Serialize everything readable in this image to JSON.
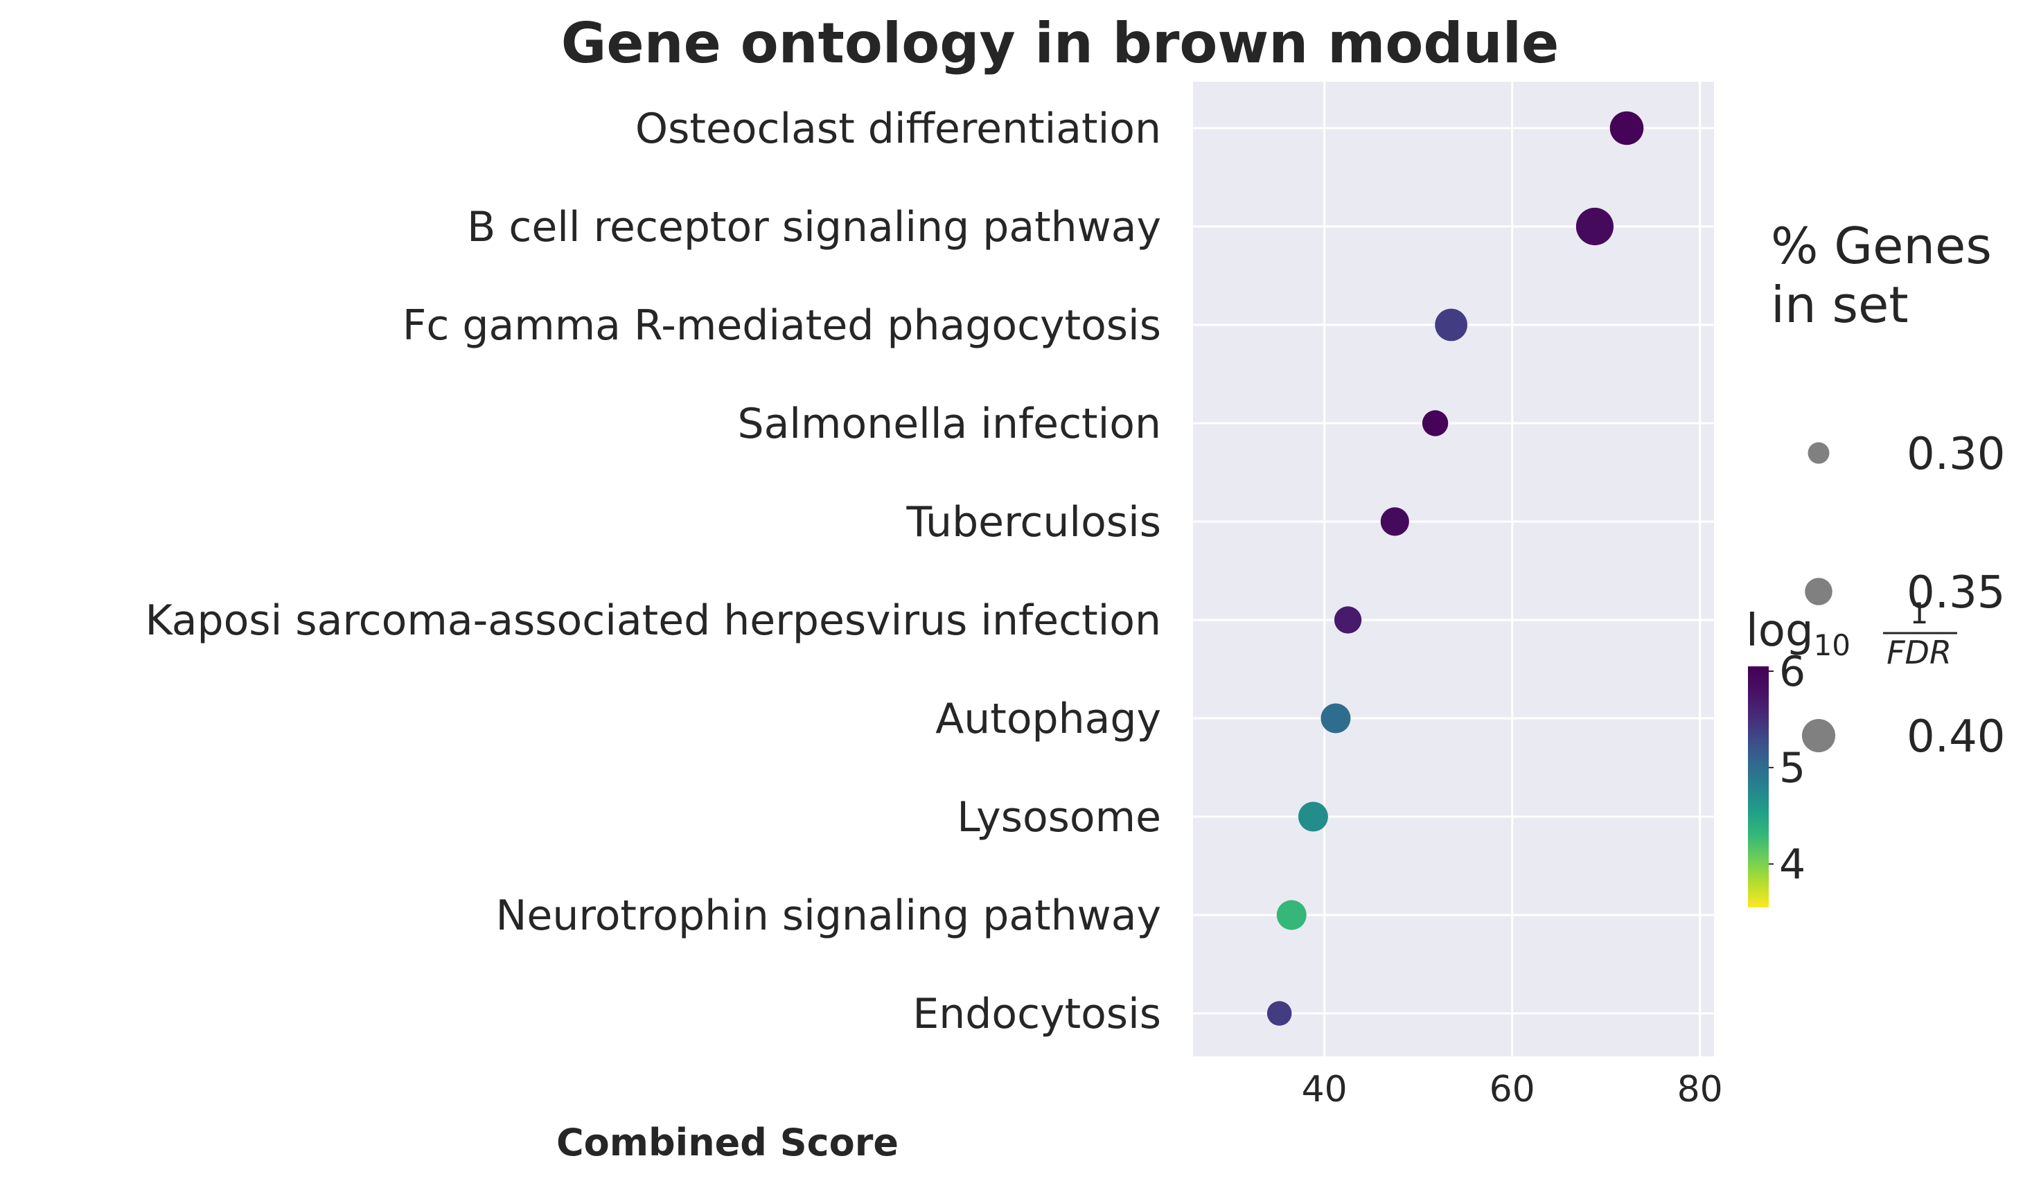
{
  "chart_data": {
    "type": "scatter",
    "title": "Gene ontology in brown module",
    "xlabel": "Combined Score",
    "ylabel": "",
    "xlim": [
      26,
      81.5
    ],
    "xticks": [
      40,
      60,
      80
    ],
    "grid": true,
    "categories": [
      "Osteoclast differentiation",
      "B cell receptor signaling pathway",
      "Fc gamma R-mediated phagocytosis",
      "Salmonella infection",
      "Tuberculosis",
      "Kaposi sarcoma-associated herpesvirus infection",
      "Autophagy",
      "Lysosome",
      "Neurotrophin signaling pathway",
      "Endocytosis"
    ],
    "x": [
      72.2,
      68.8,
      53.5,
      51.8,
      47.5,
      42.5,
      41.2,
      38.8,
      36.5,
      35.2
    ],
    "pct_genes": [
      0.38,
      0.41,
      0.37,
      0.32,
      0.34,
      0.33,
      0.35,
      0.35,
      0.35,
      0.31
    ],
    "neg_log10_fdr": [
      6.0,
      5.9,
      5.4,
      6.0,
      5.9,
      5.7,
      5.0,
      4.7,
      4.3,
      5.4
    ],
    "size_legend": {
      "title_line1": "% Genes",
      "title_line2": "in set",
      "entries": [
        "0.30",
        "0.35",
        "0.40"
      ],
      "values": [
        0.3,
        0.35,
        0.4
      ]
    },
    "colorbar": {
      "title_main": "log",
      "title_sub": "10",
      "title_num": "1",
      "title_den": "FDR",
      "min": 3.55,
      "max": 6.05,
      "ticks": [
        "6",
        "5",
        "4"
      ],
      "tick_values": [
        6,
        5,
        4
      ],
      "colormap": "viridis_r"
    },
    "legend_position": "right"
  }
}
